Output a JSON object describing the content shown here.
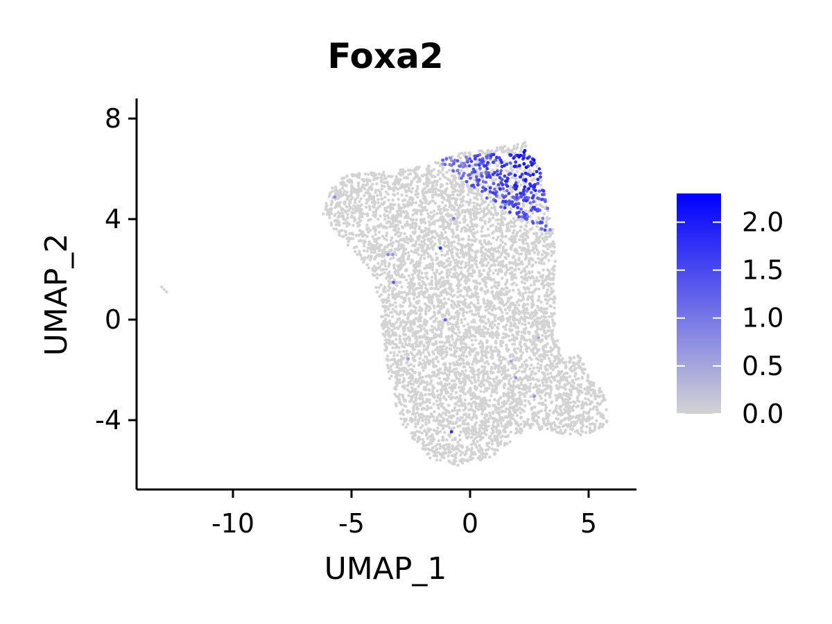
{
  "chart_data": {
    "type": "scatter",
    "title": "Foxa2",
    "xlabel": "UMAP_1",
    "ylabel": "UMAP_2",
    "xlim": [
      -14,
      7
    ],
    "ylim": [
      -6.8,
      8.7
    ],
    "xticks": [
      -10,
      -5,
      0,
      5
    ],
    "xtick_labels": [
      "-10",
      "-5",
      "0",
      "5"
    ],
    "yticks": [
      8,
      4,
      0,
      -4
    ],
    "ytick_labels": [
      "8",
      "4",
      "0",
      "-4"
    ],
    "grid": false,
    "legend_placement": "right",
    "color_scale": {
      "min": 0.0,
      "max": 2.3,
      "low_color": "#d3d3d3",
      "high_color": "#0000ff",
      "ticks": [
        0.0,
        0.5,
        1.0,
        1.5,
        2.0
      ],
      "tick_labels": [
        "0.0",
        "0.5",
        "1.0",
        "1.5",
        "2.0"
      ]
    },
    "description_regions": {
      "main_cluster_polygon": [
        [
          -6.1,
          4.6
        ],
        [
          -5.7,
          5.5
        ],
        [
          -5.0,
          5.8
        ],
        [
          -3.5,
          5.9
        ],
        [
          -2.0,
          6.1
        ],
        [
          -0.5,
          6.6
        ],
        [
          1.0,
          6.8
        ],
        [
          2.3,
          7.1
        ],
        [
          2.9,
          6.1
        ],
        [
          3.3,
          4.3
        ],
        [
          3.6,
          3.2
        ],
        [
          3.6,
          1.5
        ],
        [
          3.6,
          -0.5
        ],
        [
          3.9,
          -1.5
        ],
        [
          4.6,
          -1.4
        ],
        [
          5.0,
          -2.2
        ],
        [
          5.7,
          -3.0
        ],
        [
          5.8,
          -4.2
        ],
        [
          4.8,
          -4.6
        ],
        [
          3.4,
          -4.5
        ],
        [
          2.4,
          -4.3
        ],
        [
          1.0,
          -5.5
        ],
        [
          -0.5,
          -5.8
        ],
        [
          -1.7,
          -5.6
        ],
        [
          -3.0,
          -4.0
        ],
        [
          -3.6,
          -1.5
        ],
        [
          -3.8,
          0.6
        ],
        [
          -4.1,
          1.7
        ],
        [
          -4.8,
          2.6
        ],
        [
          -5.4,
          3.1
        ],
        [
          -5.8,
          3.7
        ],
        [
          -6.2,
          4.2
        ]
      ],
      "outlier_points": [
        [
          -13.0,
          1.3
        ],
        [
          -12.9,
          1.2
        ],
        [
          -12.8,
          1.1
        ]
      ],
      "expression_hotspot": [
        [
          -1.5,
          6.4
        ],
        [
          3.0,
          6.8
        ],
        [
          3.4,
          3.4
        ],
        [
          1.0,
          4.6
        ]
      ]
    }
  }
}
